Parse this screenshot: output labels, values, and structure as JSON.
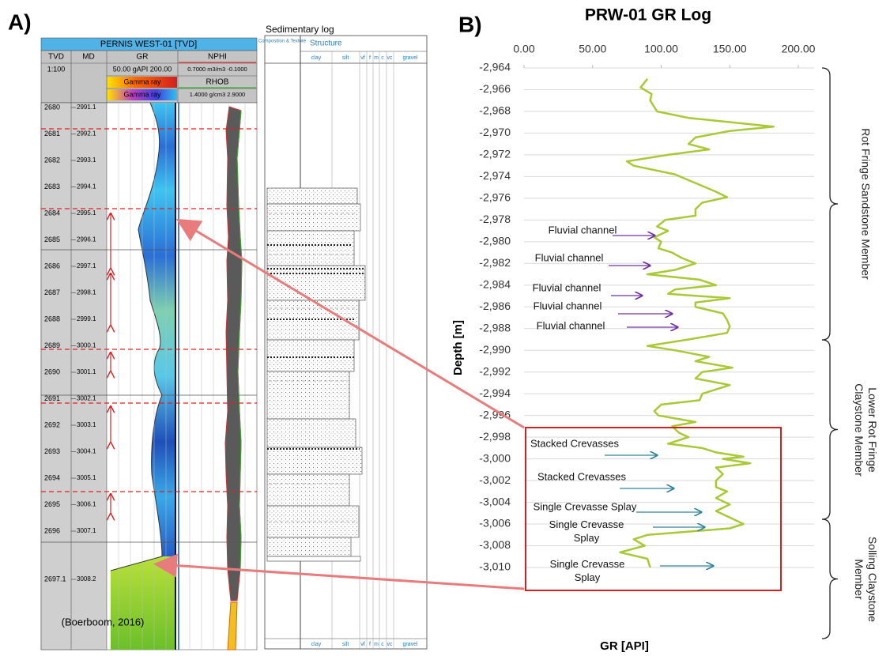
{
  "panel_a": {
    "label": "A)",
    "well": "PERNIS WEST-01 [TVD]",
    "columns": [
      "TVD",
      "MD",
      "GR",
      "NPHI"
    ],
    "scale": "1:100",
    "gr_range": "50.00 gAPI 200.00",
    "nphi_range": "0.7000 m3/m3 -0.1000",
    "gr_legend": [
      "Gamma ray",
      "Gamma ray"
    ],
    "rhob": "RHOB",
    "rhob_range": "1.4000 g/cm3 2.9000",
    "tvd": [
      "2680",
      "2681",
      "2682",
      "2683",
      "2684",
      "2685",
      "2686",
      "2687",
      "2688",
      "2689",
      "2690",
      "2691",
      "2692",
      "2693",
      "2694",
      "2695",
      "2696",
      "2697.1"
    ],
    "md": [
      "2991.1",
      "2992.1",
      "2993.1",
      "2994.1",
      "2995.1",
      "2996.1",
      "2997.1",
      "2998.1",
      "2999.1",
      "3000.1",
      "3001.1",
      "3002.1",
      "3003.1",
      "3004.1",
      "3005.1",
      "3006.1",
      "3007.1",
      "3008.2"
    ],
    "sed_log": {
      "title": "Sedimentary log",
      "composition": "Composition & Texture",
      "structure": "Structure",
      "grain_sizes": [
        "clay",
        "silt",
        "vf",
        "f",
        "m",
        "c",
        "vc",
        "gravel"
      ]
    },
    "citation": "(Boerboom, 2016)"
  },
  "chart_data": {
    "type": "line",
    "panel_label": "B)",
    "title": "PRW-01 GR Log",
    "x_label": "GR [API]",
    "y_label": "Depth [m]",
    "color": "#a9c934",
    "xlim": [
      0,
      200
    ],
    "xticks": [
      {
        "value": 0,
        "label": "0.00"
      },
      {
        "value": 50,
        "label": "50.00"
      },
      {
        "value": 100,
        "label": "100.00"
      },
      {
        "value": 150,
        "label": "150.00"
      },
      {
        "value": 200,
        "label": "200.00"
      }
    ],
    "ylim": [
      -2964,
      -3010
    ],
    "yticks": [
      {
        "value": -2964,
        "label": "-2,964"
      },
      {
        "value": -2966,
        "label": "-2,966"
      },
      {
        "value": -2968,
        "label": "-2,968"
      },
      {
        "value": -2970,
        "label": "-2,970"
      },
      {
        "value": -2972,
        "label": "-2,972"
      },
      {
        "value": -2974,
        "label": "-2,974"
      },
      {
        "value": -2976,
        "label": "-2,976"
      },
      {
        "value": -2978,
        "label": "-2,978"
      },
      {
        "value": -2980,
        "label": "-2,980"
      },
      {
        "value": -2982,
        "label": "-2,982"
      },
      {
        "value": -2984,
        "label": "-2,984"
      },
      {
        "value": -2986,
        "label": "-2,986"
      },
      {
        "value": -2988,
        "label": "-2,988"
      },
      {
        "value": -2990,
        "label": "-2,990"
      },
      {
        "value": -2992,
        "label": "-2,992"
      },
      {
        "value": -2994,
        "label": "-2,994"
      },
      {
        "value": -2996,
        "label": "-2,996"
      },
      {
        "value": -2998,
        "label": "-2,998"
      },
      {
        "value": -3000,
        "label": "-3,000"
      },
      {
        "value": -3002,
        "label": "-3,002"
      },
      {
        "value": -3004,
        "label": "-3,004"
      },
      {
        "value": -3006,
        "label": "-3,006"
      },
      {
        "value": -3008,
        "label": "-3,008"
      },
      {
        "value": -3010,
        "label": "-3,010"
      }
    ],
    "grid": true,
    "x": [
      90,
      85,
      93,
      92,
      97,
      120,
      182,
      150,
      125,
      120,
      135,
      105,
      75,
      80,
      110,
      125,
      140,
      148,
      130,
      125,
      125,
      103,
      97,
      105,
      95,
      100,
      98,
      108,
      115,
      125,
      110,
      90,
      128,
      140,
      110,
      105,
      150,
      125,
      125,
      145,
      148,
      150,
      148,
      120,
      90,
      110,
      135,
      125,
      152,
      130,
      125,
      150,
      140,
      130,
      128,
      100,
      95,
      98,
      125,
      108,
      113,
      120,
      105,
      130,
      140,
      160,
      145,
      165,
      140,
      145,
      140,
      140,
      148,
      140,
      150,
      140,
      150,
      160,
      150,
      90,
      80,
      88,
      70,
      90,
      92
    ],
    "values": [
      -2965,
      -2965.8,
      -2966.4,
      -2967,
      -2968,
      -2968.6,
      -2969.4,
      -2969.8,
      -2970.4,
      -2971,
      -2971.5,
      -2972,
      -2972.6,
      -2973,
      -2973.8,
      -2974.6,
      -2975.4,
      -2975.9,
      -2976.4,
      -2977,
      -2977.6,
      -2978,
      -2978.6,
      -2979,
      -2979.6,
      -2980,
      -2980.6,
      -2981,
      -2981.5,
      -2982,
      -2982.6,
      -2983,
      -2983.5,
      -2984,
      -2984.4,
      -2984.8,
      -2985.2,
      -2985.6,
      -2986,
      -2986.6,
      -2987.2,
      -2987.8,
      -2988.4,
      -2989,
      -2989.6,
      -2990,
      -2990.6,
      -2991,
      -2991.6,
      -2992,
      -2992.6,
      -2993.2,
      -2993.6,
      -2994,
      -2994.6,
      -2995,
      -2995.6,
      -2996,
      -2996.6,
      -2997,
      -2997.6,
      -2998,
      -2998.6,
      -2999,
      -2999.4,
      -2999.8,
      -3000,
      -3000.4,
      -3000.8,
      -3001.4,
      -3002,
      -3002.6,
      -3003,
      -3003.6,
      -3004.2,
      -3004.8,
      -3005.4,
      -3006,
      -3006.4,
      -3007,
      -3007.4,
      -3008,
      -3008.6,
      -3009.2,
      -3010
    ],
    "annotations": [
      "Fluvial channel",
      "Fluvial channel",
      "Fluvial channel",
      "Fluvial channel",
      "Fluvial channel",
      "Stacked Crevasses",
      "Stacked Crevasses",
      "Single Crevasse Splay",
      "Single Crevasse Splay",
      "Single Crevasse Splay"
    ],
    "members": [
      "Rot Fringe Sandstone Member",
      "Lower Rot Fringe Claystone Member",
      "Solling Claystone Member"
    ]
  }
}
